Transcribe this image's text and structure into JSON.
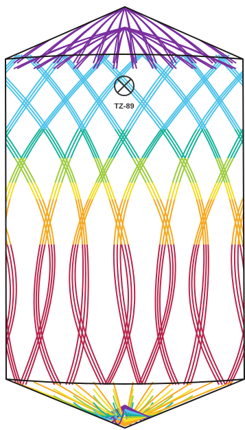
{
  "figure": {
    "label": "TZ-89",
    "marker_icon": "crossed-circle",
    "colors": {
      "purple": "#7b2fa0",
      "blue": "#4cc3ea",
      "teal": "#17b39a",
      "green": "#9ccc3a",
      "yellow": "#f2dd20",
      "orange": "#f6a81e",
      "red": "#b8244a",
      "outline": "#1a1a1a"
    }
  }
}
